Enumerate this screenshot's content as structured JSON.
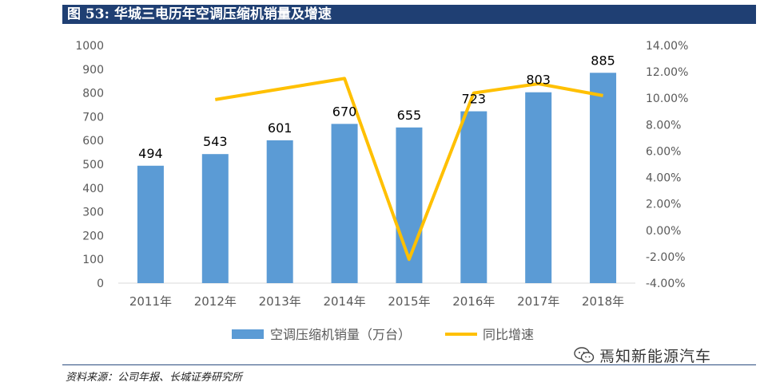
{
  "figure": {
    "number": "图 53:",
    "title": "华城三电历年空调压缩机销量及增速"
  },
  "source": "资料来源：公司年报、长城证券研究所",
  "watermark": {
    "text": "焉知新能源汽车",
    "icon": "wechat-icon"
  },
  "colors": {
    "bar": "#5b9bd5",
    "line": "#ffc000",
    "title_bg": "#1f3f73",
    "axis_text": "#595959"
  },
  "chart_data": {
    "type": "bar",
    "categories": [
      "2011年",
      "2012年",
      "2013年",
      "2014年",
      "2015年",
      "2016年",
      "2017年",
      "2018年"
    ],
    "series": [
      {
        "name": "空调压缩机销量（万台）",
        "type": "bar",
        "axis": "left",
        "values": [
          494,
          543,
          601,
          670,
          655,
          723,
          803,
          885
        ],
        "labels": [
          "494",
          "543",
          "601",
          "670",
          "655",
          "723",
          "803",
          "885"
        ]
      },
      {
        "name": "同比增速",
        "type": "line",
        "axis": "right",
        "values": [
          null,
          9.9,
          10.7,
          11.5,
          -2.2,
          10.4,
          11.1,
          10.2
        ]
      }
    ],
    "y_left": {
      "lim": [
        0,
        1000
      ],
      "ticks": [
        "0",
        "100",
        "200",
        "300",
        "400",
        "500",
        "600",
        "700",
        "800",
        "900",
        "1000"
      ]
    },
    "y_right": {
      "lim": [
        -4,
        14
      ],
      "ticks": [
        "-4.00%",
        "-2.00%",
        "0.00%",
        "2.00%",
        "4.00%",
        "6.00%",
        "8.00%",
        "10.00%",
        "12.00%",
        "14.00%"
      ]
    },
    "legend_position": "bottom",
    "grid": false
  }
}
